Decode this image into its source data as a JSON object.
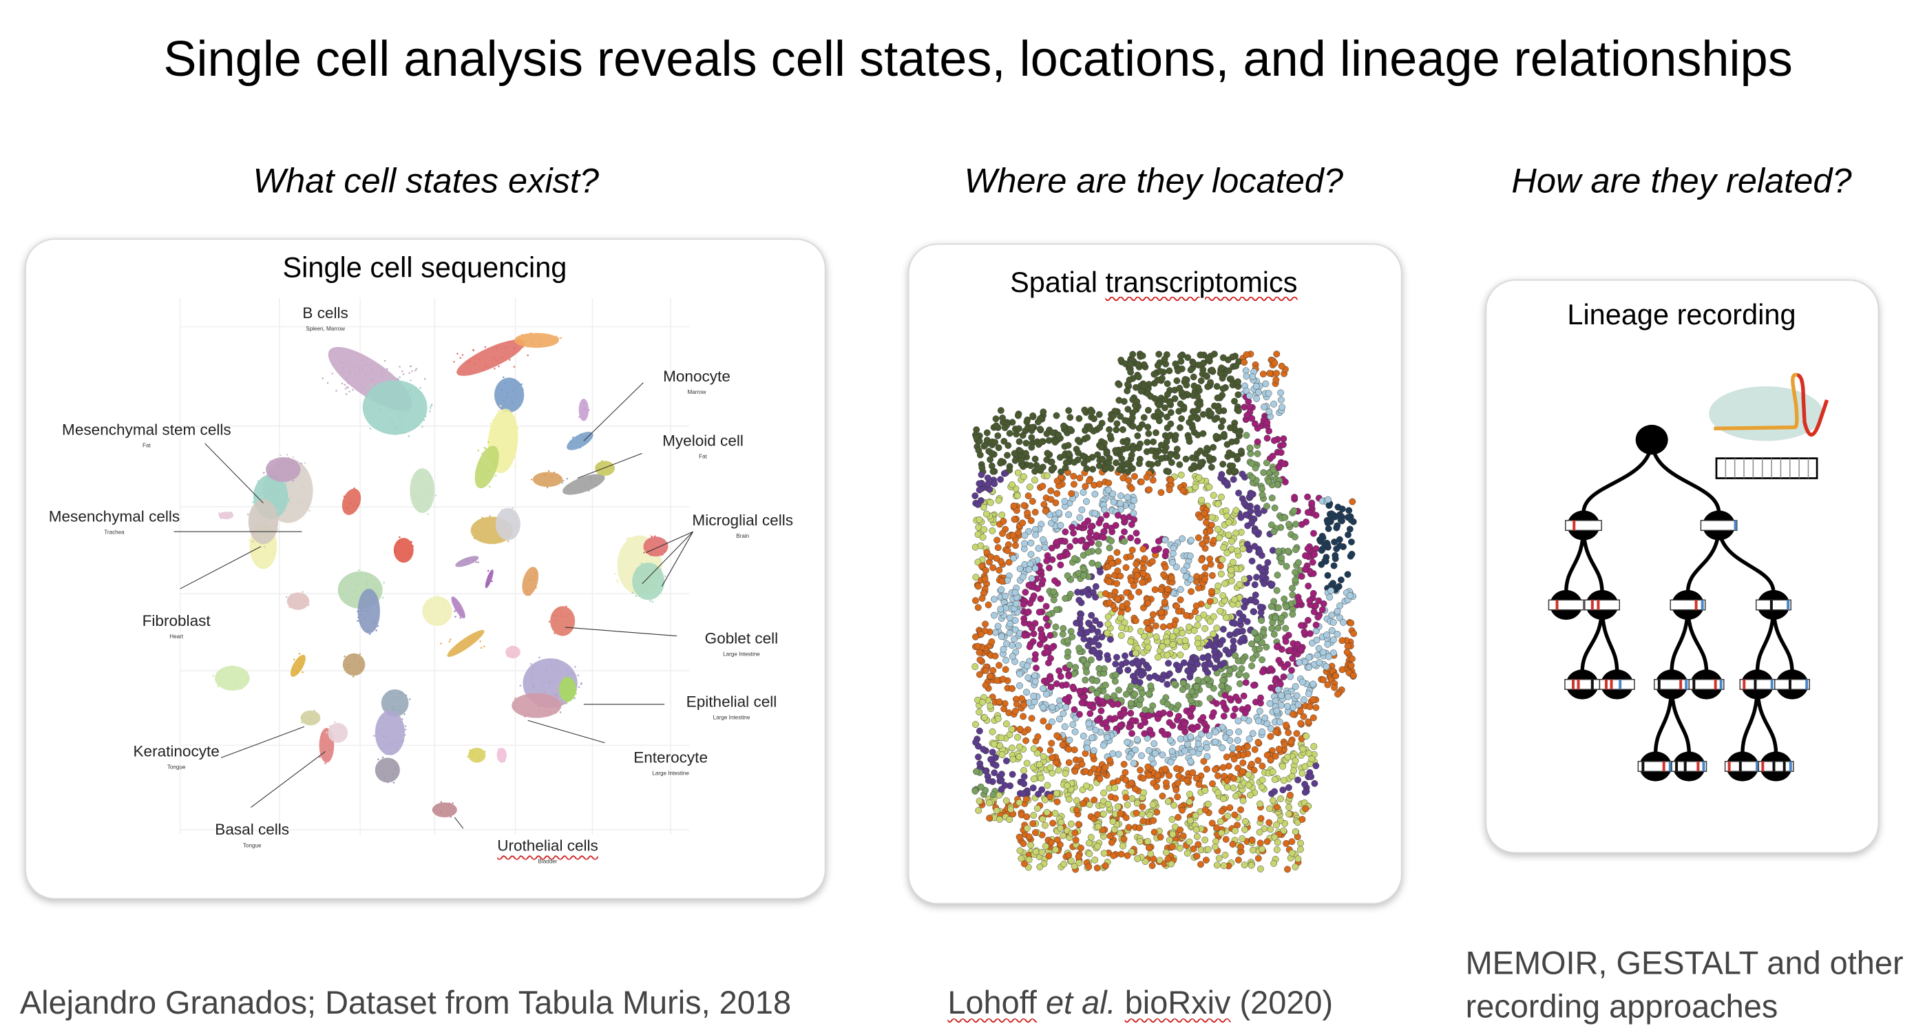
{
  "slide": {
    "title": "Single cell analysis reveals cell states, locations, and lineage relationships",
    "questions": [
      "What cell states exist?",
      "Where are they located?",
      "How are they related?"
    ]
  },
  "panels": {
    "sequencing": {
      "title": "Single cell sequencing",
      "labels": [
        {
          "name": "B cells",
          "tissue": "Spleen, Marrow"
        },
        {
          "name": "Monocyte",
          "tissue": "Marrow"
        },
        {
          "name": "Mesenchymal stem cells",
          "tissue": "Fat"
        },
        {
          "name": "Myeloid cell",
          "tissue": "Fat"
        },
        {
          "name": "Mesenchymal cells",
          "tissue": "Trachea"
        },
        {
          "name": "Microglial cells",
          "tissue": "Brain"
        },
        {
          "name": "Fibroblast",
          "tissue": "Heart"
        },
        {
          "name": "Goblet cell",
          "tissue": "Large Intestine"
        },
        {
          "name": "Epithelial cell",
          "tissue": "Large Intestine"
        },
        {
          "name": "Keratinocyte",
          "tissue": "Tongue"
        },
        {
          "name": "Enterocyte",
          "tissue": "Large Intestine"
        },
        {
          "name": "Basal cells",
          "tissue": "Tongue"
        },
        {
          "name": "Urothelial cells",
          "tissue": "Bladder"
        }
      ]
    },
    "spatial": {
      "title_a": "Spatial ",
      "title_b": "transcriptomics"
    },
    "lineage": {
      "title": "Lineage recording"
    }
  },
  "captions": {
    "sequencing": "Alejandro Granados; Dataset from Tabula Muris, 2018",
    "spatial": {
      "author": "Lohoff",
      "etal": " et al.",
      "journal": "bioRxiv",
      "year": " (2020)"
    },
    "lineage_line1": "MEMOIR, GESTALT and other",
    "lineage_line2": "recording approaches"
  },
  "colors": {
    "barcode_red": "#d0342c",
    "barcode_blue": "#4a86c8",
    "nucleus": "#cfe3df",
    "squiggle": "#d02020"
  }
}
